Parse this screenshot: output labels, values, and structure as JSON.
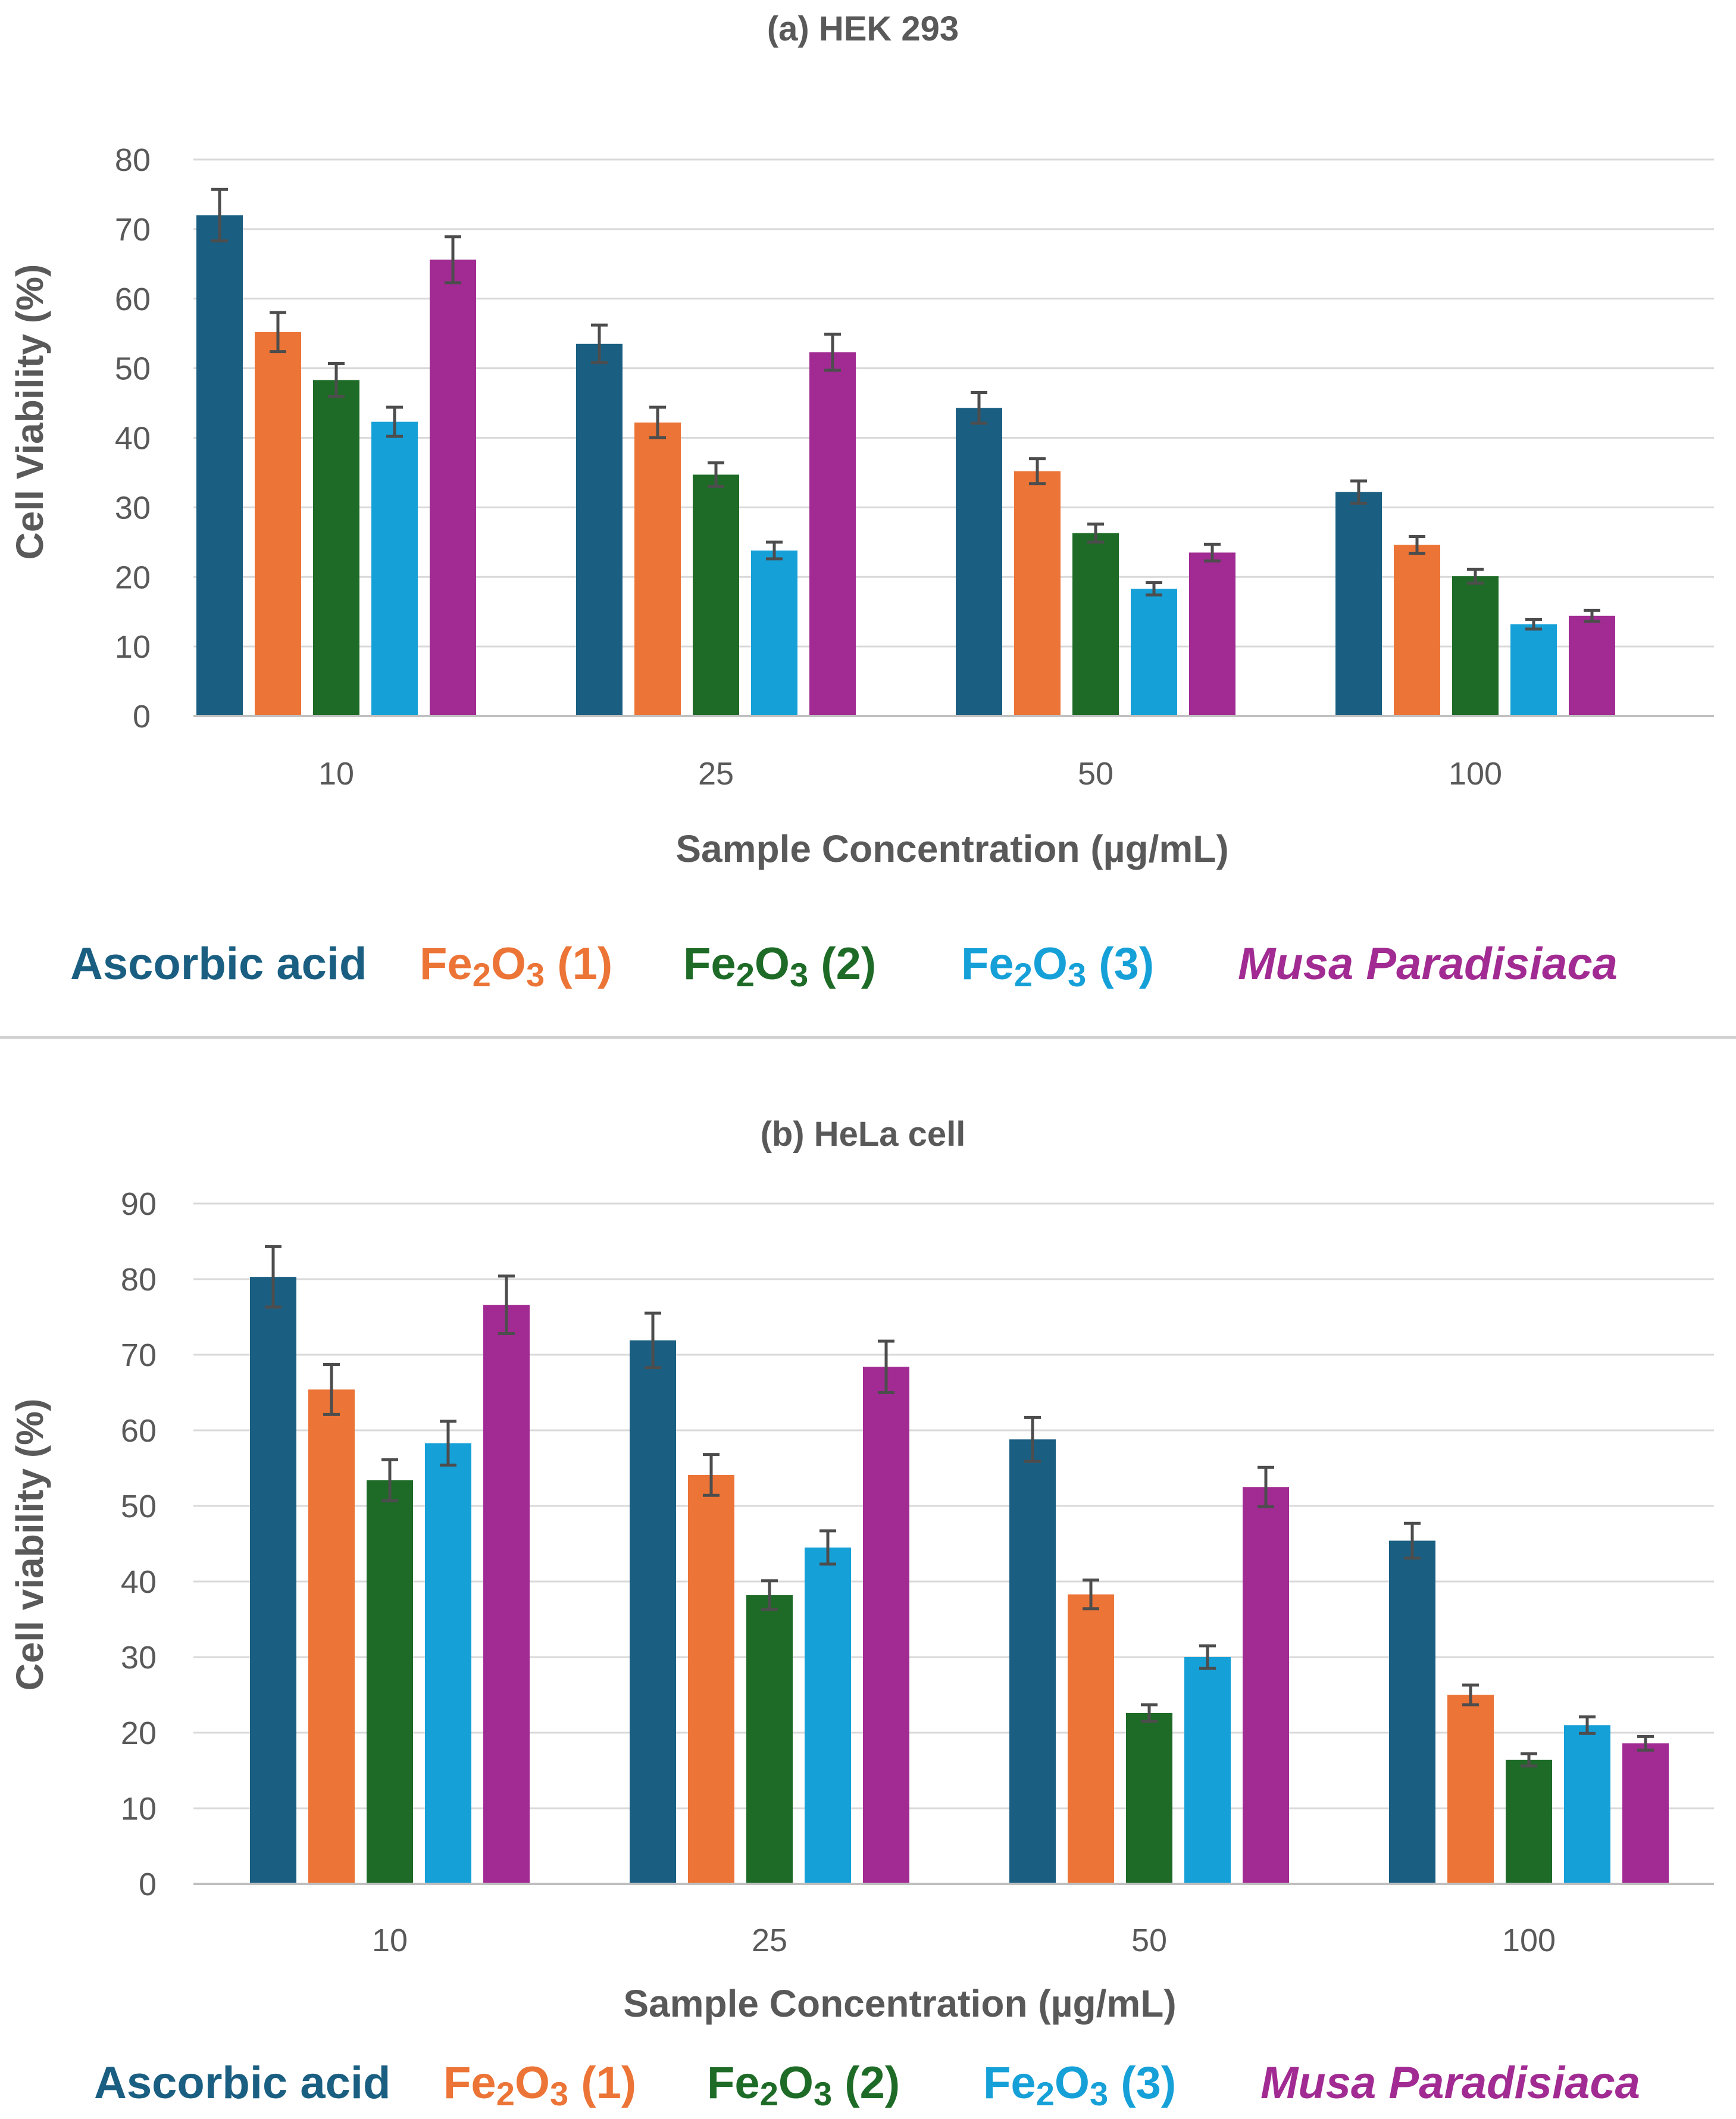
{
  "chart_data": [
    {
      "type": "bar",
      "title": "(a) HEK 293",
      "xlabel": "Sample Concentration (µg/mL)",
      "ylabel": "Cell Viability (%)",
      "ylim": [
        0,
        80
      ],
      "ytick_step": 10,
      "grid": true,
      "categories": [
        "10",
        "25",
        "50",
        "100"
      ],
      "series": [
        {
          "key": "ascorbic",
          "name": "Ascorbic acid",
          "color": "#1a5f82",
          "values": [
            72,
            53.5,
            44.3,
            32.2
          ],
          "errors": [
            3.7,
            2.7,
            2.2,
            1.6
          ]
        },
        {
          "key": "fe1",
          "name": "Fe2O3 (1)",
          "color": "#ec7436",
          "values": [
            55.2,
            42.2,
            35.2,
            24.6
          ],
          "errors": [
            2.8,
            2.2,
            1.8,
            1.2
          ]
        },
        {
          "key": "fe2",
          "name": "Fe2O3 (2)",
          "color": "#1e6b27",
          "values": [
            48.3,
            34.7,
            26.3,
            20.1
          ],
          "errors": [
            2.4,
            1.7,
            1.3,
            1.0
          ]
        },
        {
          "key": "fe3",
          "name": "Fe2O3 (3)",
          "color": "#16a0d8",
          "values": [
            42.3,
            23.8,
            18.3,
            13.2
          ],
          "errors": [
            2.1,
            1.2,
            0.9,
            0.7
          ]
        },
        {
          "key": "musa",
          "name": "Musa Paradisiaca",
          "color": "#a12b92",
          "values": [
            65.6,
            52.3,
            23.5,
            14.4
          ],
          "errors": [
            3.3,
            2.6,
            1.2,
            0.8
          ]
        }
      ]
    },
    {
      "type": "bar",
      "title": "(b) HeLa cell",
      "xlabel": "Sample Concentration (µg/mL)",
      "ylabel": "Cell viability (%)",
      "ylim": [
        0,
        90
      ],
      "ytick_step": 10,
      "grid": true,
      "categories": [
        "10",
        "25",
        "50",
        "100"
      ],
      "series": [
        {
          "key": "ascorbic",
          "name": "Ascorbic acid",
          "color": "#1a5f82",
          "values": [
            80.3,
            71.9,
            58.8,
            45.4
          ],
          "errors": [
            4.0,
            3.6,
            2.9,
            2.3
          ]
        },
        {
          "key": "fe1",
          "name": "Fe2O3 (1)",
          "color": "#ec7436",
          "values": [
            65.4,
            54.1,
            38.3,
            25.0
          ],
          "errors": [
            3.3,
            2.7,
            1.9,
            1.3
          ]
        },
        {
          "key": "fe2",
          "name": "Fe2O3 (2)",
          "color": "#1e6b27",
          "values": [
            53.4,
            38.2,
            22.6,
            16.4
          ],
          "errors": [
            2.7,
            1.9,
            1.1,
            0.8
          ]
        },
        {
          "key": "fe3",
          "name": "Fe2O3 (3)",
          "color": "#16a0d8",
          "values": [
            58.3,
            44.5,
            30.0,
            21.0
          ],
          "errors": [
            2.9,
            2.2,
            1.5,
            1.1
          ]
        },
        {
          "key": "musa",
          "name": "Musa Paradisiaca",
          "color": "#a12b92",
          "values": [
            76.6,
            68.4,
            52.5,
            18.6
          ],
          "errors": [
            3.8,
            3.4,
            2.6,
            0.9
          ]
        }
      ]
    }
  ],
  "legend": {
    "ascorbic": "Ascorbic acid",
    "fe_prefix": "Fe",
    "fe_sub1": "2",
    "fe_mid": "O",
    "fe_sub2": "3",
    "fe1_suffix": " (1)",
    "fe2_suffix": " (2)",
    "fe3_suffix": " (3)",
    "musa": "Musa Paradisiaca"
  },
  "colors": {
    "ascorbic": "#1a5f82",
    "fe1": "#ec7436",
    "fe2": "#1e6b27",
    "fe3": "#16a0d8",
    "musa": "#a12b92"
  }
}
